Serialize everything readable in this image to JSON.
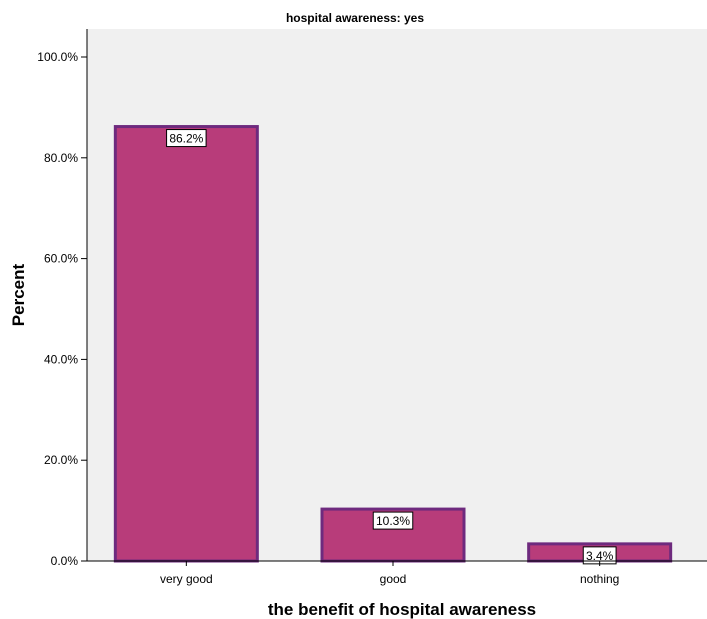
{
  "chart_data": {
    "type": "bar",
    "title": "hospital awareness: yes",
    "xlabel": "the benefit of hospital awareness",
    "ylabel": "Percent",
    "categories": [
      "very good",
      "good",
      "nothing"
    ],
    "values": [
      86.2,
      10.3,
      3.4
    ],
    "data_labels": [
      "86.2%",
      "10.3%",
      "3.4%"
    ],
    "ylim": [
      0,
      100
    ],
    "yticks": [
      0,
      20,
      40,
      60,
      80,
      100
    ],
    "ytick_labels": [
      "0.0%",
      "20.0%",
      "40.0%",
      "60.0%",
      "80.0%",
      "100.0%"
    ],
    "grid": false,
    "legend": "none",
    "colors": {
      "bar_fill": "#b83c7a",
      "bar_stroke": "#6e2a7e",
      "plot_background": "#f0f0f0"
    }
  }
}
